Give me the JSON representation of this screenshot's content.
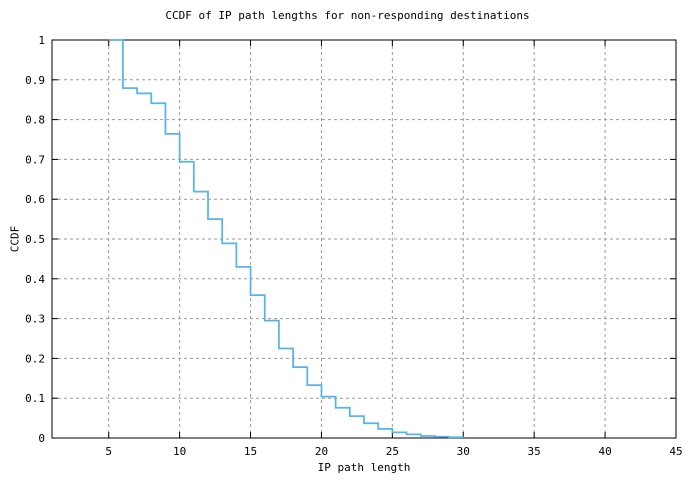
{
  "title": "CCDF of IP path lengths for non-responding destinations",
  "colors": {
    "background": "#ffffff",
    "border": "#000000",
    "grid": "#9a9a9a",
    "curve": "#56b4e9",
    "text": "#000000"
  },
  "chart_data": {
    "type": "line",
    "subtype": "step-ccdf",
    "title": "CCDF of IP path lengths for non-responding destinations",
    "xlabel": "IP path length",
    "ylabel": "CCDF",
    "xlim": [
      1,
      45
    ],
    "ylim": [
      0,
      1
    ],
    "x_ticks": [
      5,
      10,
      15,
      20,
      25,
      30,
      35,
      40,
      45
    ],
    "x_tick_labels": [
      "5",
      "10",
      "15",
      "20",
      "25",
      "30",
      "35",
      "40",
      "45"
    ],
    "y_ticks": [
      0,
      0.1,
      0.2,
      0.3,
      0.4,
      0.5,
      0.6,
      0.7,
      0.8,
      0.9,
      1
    ],
    "y_tick_labels": [
      "0",
      "0.1",
      "0.2",
      "0.3",
      "0.4",
      "0.5",
      "0.6",
      "0.7",
      "0.8",
      "0.9",
      "1"
    ],
    "grid": true,
    "grid_style": "dashed",
    "legend": "none",
    "series": [
      {
        "name": "CCDF",
        "color": "#56b4e9",
        "x": [
          5,
          6,
          7,
          8,
          9,
          10,
          11,
          12,
          13,
          14,
          15,
          16,
          17,
          18,
          19,
          20,
          21,
          22,
          23,
          24,
          25,
          26,
          27,
          28,
          29,
          30
        ],
        "y": [
          1.0,
          0.879,
          0.866,
          0.841,
          0.764,
          0.694,
          0.619,
          0.55,
          0.489,
          0.43,
          0.359,
          0.295,
          0.225,
          0.178,
          0.133,
          0.104,
          0.076,
          0.055,
          0.037,
          0.023,
          0.014,
          0.009,
          0.005,
          0.003,
          0.002,
          0.001
        ]
      }
    ]
  }
}
